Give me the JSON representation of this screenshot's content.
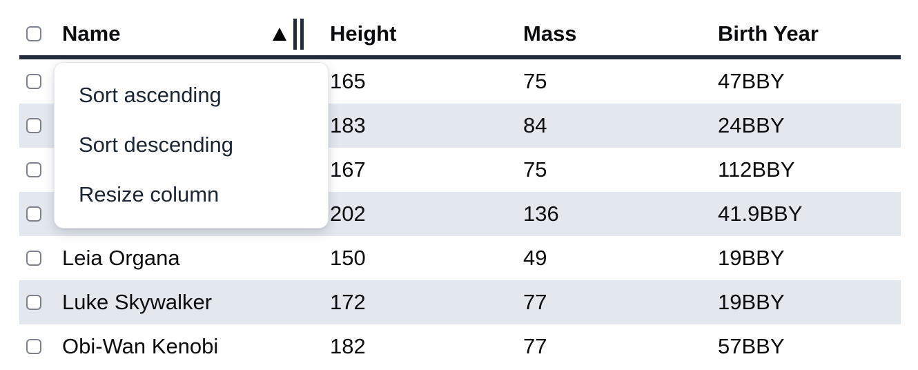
{
  "header": {
    "name_label": "Name",
    "height_label": "Height",
    "mass_label": "Mass",
    "birth_year_label": "Birth Year",
    "name_sort_direction": "ascending",
    "sort_icon_glyph": "▲"
  },
  "column_menu": {
    "items": [
      "Sort ascending",
      "Sort descending",
      "Resize column"
    ]
  },
  "rows": [
    {
      "name": "",
      "height": "165",
      "mass": "75",
      "birth_year": "47BBY"
    },
    {
      "name": "",
      "height": "183",
      "mass": "84",
      "birth_year": "24BBY"
    },
    {
      "name": "",
      "height": "167",
      "mass": "75",
      "birth_year": "112BBY"
    },
    {
      "name": "",
      "height": "202",
      "mass": "136",
      "birth_year": "41.9BBY"
    },
    {
      "name": "Leia Organa",
      "height": "150",
      "mass": "49",
      "birth_year": "19BBY"
    },
    {
      "name": "Luke Skywalker",
      "height": "172",
      "mass": "77",
      "birth_year": "19BBY"
    },
    {
      "name": "Obi-Wan Kenobi",
      "height": "182",
      "mass": "77",
      "birth_year": "57BBY"
    }
  ],
  "colors": {
    "header_border": "#232d3d",
    "row_stripe": "#e3e8ef",
    "text": "#0b0c0e",
    "menu_text": "#1b2533",
    "checkbox_border": "#7c828d",
    "menu_border": "#e7e9ee",
    "sort_icon": "#000000"
  }
}
